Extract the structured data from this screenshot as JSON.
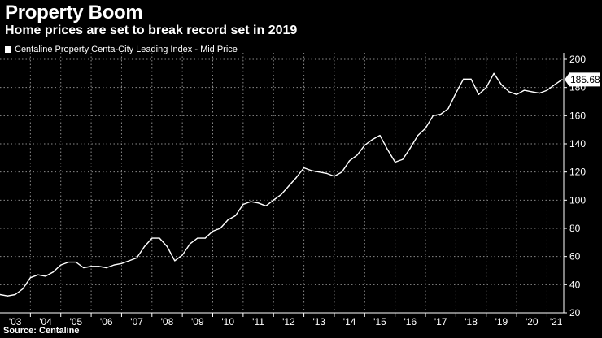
{
  "header": {
    "title": "Property Boom",
    "subtitle": "Home prices are set to break record set in 2019"
  },
  "footer": {
    "source": "Source: Centaline"
  },
  "colors": {
    "background": "#000000",
    "line": "#ffffff",
    "grid": "#8a8a8a",
    "text": "#ffffff"
  },
  "chart_data": {
    "type": "line",
    "title": "Property Boom",
    "subtitle": "Home prices are set to break record set in 2019",
    "xlabel": "",
    "ylabel": "",
    "xlim": [
      2003.0,
      2021.55
    ],
    "ylim": [
      20,
      200
    ],
    "yticks": [
      20,
      40,
      60,
      80,
      100,
      120,
      140,
      160,
      180,
      200
    ],
    "x_tick_labels": [
      "'03",
      "'04",
      "'05",
      "'06",
      "'07",
      "'08",
      "'09",
      "'10",
      "'11",
      "'12",
      "'13",
      "'14",
      "'15",
      "'16",
      "'17",
      "'18",
      "'19",
      "'20",
      "'21"
    ],
    "grid": true,
    "legend_position": "top-left",
    "last_value_label": "185.68",
    "series": [
      {
        "name": "Centaline Property Centa-City Leading Index - Mid Price",
        "x": [
          2003.0,
          2003.25,
          2003.5,
          2003.75,
          2004.0,
          2004.25,
          2004.5,
          2004.75,
          2005.0,
          2005.25,
          2005.5,
          2005.75,
          2006.0,
          2006.25,
          2006.5,
          2006.75,
          2007.0,
          2007.25,
          2007.5,
          2007.75,
          2008.0,
          2008.25,
          2008.5,
          2008.75,
          2009.0,
          2009.25,
          2009.5,
          2009.75,
          2010.0,
          2010.25,
          2010.5,
          2010.75,
          2011.0,
          2011.25,
          2011.5,
          2011.75,
          2012.0,
          2012.25,
          2012.5,
          2012.75,
          2013.0,
          2013.25,
          2013.5,
          2013.75,
          2014.0,
          2014.25,
          2014.5,
          2014.75,
          2015.0,
          2015.25,
          2015.5,
          2015.75,
          2016.0,
          2016.25,
          2016.5,
          2016.75,
          2017.0,
          2017.25,
          2017.5,
          2017.75,
          2018.0,
          2018.25,
          2018.5,
          2018.75,
          2019.0,
          2019.25,
          2019.5,
          2019.75,
          2020.0,
          2020.25,
          2020.5,
          2020.75,
          2021.0,
          2021.25,
          2021.5
        ],
        "values": [
          33,
          32,
          33,
          37,
          45,
          47,
          46,
          49,
          54,
          56,
          56,
          52,
          53,
          53,
          52,
          54,
          55,
          57,
          59,
          67,
          73,
          73,
          67,
          57,
          61,
          69,
          73,
          73,
          78,
          80,
          86,
          89,
          97,
          99,
          98,
          96,
          100,
          104,
          110,
          116,
          123,
          121,
          120,
          119,
          117,
          120,
          128,
          132,
          139,
          143,
          146,
          136,
          127,
          129,
          137,
          146,
          151,
          160,
          161,
          165,
          176,
          186,
          186,
          175,
          180,
          190,
          182,
          177,
          175,
          178,
          177,
          176,
          178,
          182,
          185.68
        ]
      }
    ]
  }
}
